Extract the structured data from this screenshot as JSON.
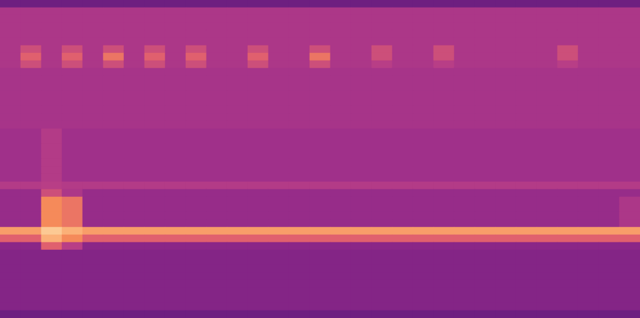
{
  "chart_data": {
    "type": "heatmap",
    "tick_labels": false,
    "zlim": [
      0,
      10
    ],
    "cells": [
      [
        3,
        3,
        3,
        3,
        3,
        3,
        3,
        3,
        3,
        3,
        3,
        3,
        3,
        3,
        3,
        3,
        3,
        3,
        3,
        3,
        3,
        3,
        3,
        3,
        3,
        3,
        3,
        3,
        3,
        3,
        3
      ],
      [
        5.5,
        5.5,
        5.5,
        5.5,
        5.5,
        5.5,
        5.5,
        5.5,
        5.5,
        5.5,
        5.5,
        5.5,
        5.5,
        5.5,
        5.5,
        5.5,
        5.5,
        5.5,
        5.5,
        5.5,
        5.5,
        5.5,
        5.5,
        5.5,
        5.5,
        5.5,
        5.5,
        5.5,
        5.5,
        5.5,
        5.5
      ],
      [
        5.5,
        5.5,
        5.5,
        5.5,
        5.5,
        5.5,
        5.5,
        5.5,
        5.5,
        5.5,
        5.5,
        5.5,
        5.5,
        5.5,
        5.5,
        5.5,
        5.5,
        5.5,
        5.5,
        5.5,
        5.5,
        5.5,
        5.5,
        5.5,
        5.5,
        5.5,
        5.5,
        5.5,
        5.5,
        5.5,
        5.5
      ],
      [
        5.5,
        5.5,
        5.5,
        5.5,
        5.5,
        5.5,
        5.5,
        5.5,
        5.5,
        5.5,
        5.5,
        5.5,
        5.5,
        5.5,
        5.5,
        5.5,
        5.5,
        5.5,
        5.5,
        5.5,
        5.5,
        5.5,
        5.5,
        5.5,
        5.5,
        5.5,
        5.5,
        5.5,
        5.5,
        5.5,
        5.5
      ],
      [
        5.5,
        5.5,
        5.5,
        5.5,
        5.5,
        5.5,
        5.5,
        5.5,
        5.5,
        5.5,
        5.5,
        5.5,
        5.5,
        5.5,
        5.5,
        5.5,
        5.5,
        5.5,
        5.5,
        5.5,
        5.5,
        5.5,
        5.5,
        5.5,
        5.5,
        5.5,
        5.5,
        5.5,
        5.5,
        5.5,
        5.5
      ],
      [
        5.5,
        5.5,
        5.5,
        5.5,
        5.5,
        5.5,
        5.5,
        5.5,
        5.5,
        5.5,
        5.5,
        5.5,
        5.5,
        5.5,
        5.5,
        5.5,
        5.5,
        5.5,
        5.5,
        5.5,
        5.5,
        5.5,
        5.5,
        5.5,
        5.5,
        5.5,
        5.5,
        5.5,
        5.5,
        5.5,
        5.5
      ],
      [
        5.5,
        6.5,
        5.5,
        6.5,
        5.5,
        6.5,
        5.5,
        6.5,
        5.5,
        6.5,
        5.5,
        5.5,
        6.5,
        5.5,
        5.5,
        6.5,
        5.5,
        5.5,
        6.5,
        5.5,
        5.5,
        6.5,
        5.5,
        5.5,
        5.5,
        5.5,
        5.5,
        6.5,
        5.5,
        5.5,
        5.5
      ],
      [
        5.5,
        7,
        5.5,
        7,
        5.5,
        7.5,
        5.5,
        7,
        5.5,
        7,
        5.5,
        5.5,
        7,
        5.5,
        5.5,
        7.5,
        5.5,
        5.5,
        6.5,
        5.5,
        5.5,
        6.5,
        5.5,
        5.5,
        5.5,
        5.5,
        5.5,
        6.5,
        5.5,
        5.5,
        5.5
      ],
      [
        5.5,
        6.5,
        5.5,
        6.5,
        5.5,
        6.5,
        5.5,
        6.5,
        5.5,
        6.5,
        5.5,
        5.5,
        6.5,
        5.5,
        5.5,
        6.5,
        5.5,
        5.5,
        6,
        5.5,
        5.5,
        6,
        5.5,
        5.5,
        5.5,
        5.5,
        5.5,
        6,
        5.5,
        5.5,
        5.5
      ],
      [
        5.3,
        5.3,
        5.3,
        5.3,
        5.3,
        5.3,
        5.3,
        5.3,
        5.3,
        5.3,
        5.3,
        5.3,
        5.3,
        5.3,
        5.3,
        5.3,
        5.3,
        5.3,
        5.3,
        5.3,
        5.3,
        5.3,
        5.3,
        5.3,
        5.3,
        5.3,
        5.3,
        5.3,
        5.3,
        5.3,
        5.3
      ],
      [
        5.3,
        5.3,
        5.3,
        5.3,
        5.3,
        5.3,
        5.3,
        5.3,
        5.3,
        5.3,
        5.3,
        5.3,
        5.3,
        5.3,
        5.3,
        5.3,
        5.3,
        5.3,
        5.3,
        5.3,
        5.3,
        5.3,
        5.3,
        5.3,
        5.3,
        5.3,
        5.3,
        5.3,
        5.3,
        5.3,
        5.3
      ],
      [
        5.3,
        5.3,
        5.3,
        5.3,
        5.3,
        5.3,
        5.3,
        5.3,
        5.3,
        5.3,
        5.3,
        5.3,
        5.3,
        5.3,
        5.3,
        5.3,
        5.3,
        5.3,
        5.3,
        5.3,
        5.3,
        5.3,
        5.3,
        5.3,
        5.3,
        5.3,
        5.3,
        5.3,
        5.3,
        5.3,
        5.3
      ],
      [
        5.3,
        5.3,
        5.3,
        5.3,
        5.3,
        5.3,
        5.3,
        5.3,
        5.3,
        5.3,
        5.3,
        5.3,
        5.3,
        5.3,
        5.3,
        5.3,
        5.3,
        5.3,
        5.3,
        5.3,
        5.3,
        5.3,
        5.3,
        5.3,
        5.3,
        5.3,
        5.3,
        5.3,
        5.3,
        5.3,
        5.3
      ],
      [
        5.3,
        5.3,
        5.3,
        5.3,
        5.3,
        5.3,
        5.3,
        5.3,
        5.3,
        5.3,
        5.3,
        5.3,
        5.3,
        5.3,
        5.3,
        5.3,
        5.3,
        5.3,
        5.3,
        5.3,
        5.3,
        5.3,
        5.3,
        5.3,
        5.3,
        5.3,
        5.3,
        5.3,
        5.3,
        5.3,
        5.3
      ],
      [
        5.3,
        5.3,
        5.3,
        5.3,
        5.3,
        5.3,
        5.3,
        5.3,
        5.3,
        5.3,
        5.3,
        5.3,
        5.3,
        5.3,
        5.3,
        5.3,
        5.3,
        5.3,
        5.3,
        5.3,
        5.3,
        5.3,
        5.3,
        5.3,
        5.3,
        5.3,
        5.3,
        5.3,
        5.3,
        5.3,
        5.3
      ],
      [
        5.3,
        5.3,
        5.3,
        5.3,
        5.3,
        5.3,
        5.3,
        5.3,
        5.3,
        5.3,
        5.3,
        5.3,
        5.3,
        5.3,
        5.3,
        5.3,
        5.3,
        5.3,
        5.3,
        5.3,
        5.3,
        5.3,
        5.3,
        5.3,
        5.3,
        5.3,
        5.3,
        5.3,
        5.3,
        5.3,
        5.3
      ],
      [
        5.3,
        5.3,
        5.3,
        5.3,
        5.3,
        5.3,
        5.3,
        5.3,
        5.3,
        5.3,
        5.3,
        5.3,
        5.3,
        5.3,
        5.3,
        5.3,
        5.3,
        5.3,
        5.3,
        5.3,
        5.3,
        5.3,
        5.3,
        5.3,
        5.3,
        5.3,
        5.3,
        5.3,
        5.3,
        5.3,
        5.3
      ],
      [
        5,
        5,
        5.8,
        5,
        5,
        5,
        5,
        5,
        5,
        5,
        5,
        5,
        5,
        5,
        5,
        5,
        5,
        5,
        5,
        5,
        5,
        5,
        5,
        5,
        5,
        5,
        5,
        5,
        5,
        5,
        5
      ],
      [
        5,
        5,
        5.8,
        5,
        5,
        5,
        5,
        5,
        5,
        5,
        5,
        5,
        5,
        5,
        5,
        5,
        5,
        5,
        5,
        5,
        5,
        5,
        5,
        5,
        5,
        5,
        5,
        5,
        5,
        5,
        5
      ],
      [
        5,
        5,
        5.8,
        5,
        5,
        5,
        5,
        5,
        5,
        5,
        5,
        5,
        5,
        5,
        5,
        5,
        5,
        5,
        5,
        5,
        5,
        5,
        5,
        5,
        5,
        5,
        5,
        5,
        5,
        5,
        5
      ],
      [
        5,
        5,
        5.8,
        5,
        5,
        5,
        5,
        5,
        5,
        5,
        5,
        5,
        5,
        5,
        5,
        5,
        5,
        5,
        5,
        5,
        5,
        5,
        5,
        5,
        5,
        5,
        5,
        5,
        5,
        5,
        5
      ],
      [
        5,
        5,
        5.8,
        5,
        5,
        5,
        5,
        5,
        5,
        5,
        5,
        5,
        5,
        5,
        5,
        5,
        5,
        5,
        5,
        5,
        5,
        5,
        5,
        5,
        5,
        5,
        5,
        5,
        5,
        5,
        5
      ],
      [
        5,
        5,
        5.8,
        5,
        5,
        5,
        5,
        5,
        5,
        5,
        5,
        5,
        5,
        5,
        5,
        5,
        5,
        5,
        5,
        5,
        5,
        5,
        5,
        5,
        5,
        5,
        5,
        5,
        5,
        5,
        5
      ],
      [
        5,
        5,
        5.8,
        5,
        5,
        5,
        5,
        5,
        5,
        5,
        5,
        5,
        5,
        5,
        5,
        5,
        5,
        5,
        5,
        5,
        5,
        5,
        5,
        5,
        5,
        5,
        5,
        5,
        5,
        5,
        5
      ],
      [
        5.8,
        5.8,
        6,
        5.8,
        5.8,
        5.8,
        5.8,
        5.8,
        5.8,
        5.8,
        5.8,
        5.8,
        5.8,
        5.8,
        5.8,
        5.8,
        5.8,
        5.8,
        5.8,
        5.8,
        5.8,
        5.8,
        5.8,
        5.8,
        5.8,
        5.8,
        5.8,
        5.8,
        5.8,
        5.8,
        5.8
      ],
      [
        4.6,
        4.6,
        6.5,
        5.5,
        4.6,
        4.6,
        4.6,
        4.6,
        4.6,
        4.6,
        4.6,
        4.6,
        4.6,
        4.6,
        4.6,
        4.6,
        4.6,
        4.6,
        4.6,
        4.6,
        4.6,
        4.6,
        4.6,
        4.6,
        4.6,
        4.6,
        4.6,
        4.6,
        4.6,
        4.6,
        4.6
      ],
      [
        4.6,
        4.6,
        8,
        7.5,
        4.6,
        4.6,
        4.6,
        4.6,
        4.6,
        4.6,
        4.6,
        4.6,
        4.6,
        4.6,
        4.6,
        4.6,
        4.6,
        4.6,
        4.6,
        4.6,
        4.6,
        4.6,
        4.6,
        4.6,
        4.6,
        4.6,
        4.6,
        4.6,
        4.6,
        4.6,
        5.5
      ],
      [
        4.6,
        4.6,
        8,
        7.5,
        4.6,
        4.6,
        4.6,
        4.6,
        4.6,
        4.6,
        4.6,
        4.6,
        4.6,
        4.6,
        4.6,
        4.6,
        4.6,
        4.6,
        4.6,
        4.6,
        4.6,
        4.6,
        4.6,
        4.6,
        4.6,
        4.6,
        4.6,
        4.6,
        4.6,
        4.6,
        5.5
      ],
      [
        4.6,
        4.6,
        8,
        7.5,
        4.6,
        4.6,
        4.6,
        4.6,
        4.6,
        4.6,
        4.6,
        4.6,
        4.6,
        4.6,
        4.6,
        4.6,
        4.6,
        4.6,
        4.6,
        4.6,
        4.6,
        4.6,
        4.6,
        4.6,
        4.6,
        4.6,
        4.6,
        4.6,
        4.6,
        4.6,
        5.5
      ],
      [
        4.6,
        4.6,
        8,
        7.5,
        4.6,
        4.6,
        4.6,
        4.6,
        4.6,
        4.6,
        4.6,
        4.6,
        4.6,
        4.6,
        4.6,
        4.6,
        4.6,
        4.6,
        4.6,
        4.6,
        4.6,
        4.6,
        4.6,
        4.6,
        4.6,
        4.6,
        4.6,
        4.6,
        4.6,
        4.6,
        5.5
      ],
      [
        8.5,
        8.5,
        9.5,
        9,
        8.5,
        8.5,
        8.5,
        8.5,
        8.5,
        8.5,
        8.5,
        8.5,
        8.5,
        8.5,
        8.5,
        8.5,
        8.5,
        8.5,
        8.5,
        8.5,
        8.5,
        8.5,
        8.5,
        8.5,
        8.5,
        8.5,
        8.5,
        8.5,
        8.5,
        8.5,
        8.5
      ],
      [
        7,
        7,
        9,
        8,
        7,
        7,
        7,
        7,
        7,
        7,
        7,
        7,
        7,
        7,
        7,
        7,
        7,
        7,
        7,
        7,
        7,
        7,
        7,
        7,
        7,
        7,
        7,
        7,
        7,
        7,
        7
      ],
      [
        4,
        4,
        7,
        6,
        4,
        4,
        4,
        4,
        4,
        4,
        4,
        4,
        4,
        4,
        4,
        4,
        4,
        4,
        4,
        4,
        4,
        4,
        4,
        4,
        4,
        4,
        4,
        4,
        4,
        4,
        4
      ],
      [
        3.8,
        3.8,
        3.8,
        3.8,
        3.8,
        3.8,
        3.8,
        3.8,
        3.8,
        3.8,
        3.8,
        3.8,
        3.8,
        3.8,
        3.8,
        3.8,
        3.8,
        3.8,
        3.8,
        3.8,
        3.8,
        3.8,
        3.8,
        3.8,
        3.8,
        3.8,
        3.8,
        3.8,
        3.8,
        3.8,
        3.8
      ],
      [
        3.8,
        3.8,
        3.8,
        3.8,
        3.8,
        3.8,
        3.8,
        3.8,
        3.8,
        3.8,
        3.8,
        3.8,
        3.8,
        3.8,
        3.8,
        3.8,
        3.8,
        3.8,
        3.8,
        3.8,
        3.8,
        3.8,
        3.8,
        3.8,
        3.8,
        3.8,
        3.8,
        3.8,
        3.8,
        3.8,
        3.8
      ],
      [
        3.8,
        3.8,
        3.8,
        3.8,
        3.8,
        3.8,
        3.8,
        3.8,
        3.8,
        3.8,
        3.8,
        3.8,
        3.8,
        3.8,
        3.8,
        3.8,
        3.8,
        3.8,
        3.8,
        3.8,
        3.8,
        3.8,
        3.8,
        3.8,
        3.8,
        3.8,
        3.8,
        3.8,
        3.8,
        3.8,
        3.8
      ],
      [
        3.8,
        3.8,
        3.8,
        3.8,
        3.8,
        3.8,
        3.8,
        3.8,
        3.8,
        3.8,
        3.8,
        3.8,
        3.8,
        3.8,
        3.8,
        3.8,
        3.8,
        3.8,
        3.8,
        3.8,
        3.8,
        3.8,
        3.8,
        3.8,
        3.8,
        3.8,
        3.8,
        3.8,
        3.8,
        3.8,
        3.8
      ],
      [
        3.8,
        3.8,
        3.8,
        3.8,
        3.8,
        3.8,
        3.8,
        3.8,
        3.8,
        3.8,
        3.8,
        3.8,
        3.8,
        3.8,
        3.8,
        3.8,
        3.8,
        3.8,
        3.8,
        3.8,
        3.8,
        3.8,
        3.8,
        3.8,
        3.8,
        3.8,
        3.8,
        3.8,
        3.8,
        3.8,
        3.8
      ],
      [
        3.8,
        3.8,
        3.8,
        3.8,
        3.8,
        3.8,
        3.8,
        3.8,
        3.8,
        3.8,
        3.8,
        3.8,
        3.8,
        3.8,
        3.8,
        3.8,
        3.8,
        3.8,
        3.8,
        3.8,
        3.8,
        3.8,
        3.8,
        3.8,
        3.8,
        3.8,
        3.8,
        3.8,
        3.8,
        3.8,
        3.8
      ],
      [
        3.8,
        3.8,
        3.8,
        3.8,
        3.8,
        3.8,
        3.8,
        3.8,
        3.8,
        3.8,
        3.8,
        3.8,
        3.8,
        3.8,
        3.8,
        3.8,
        3.8,
        3.8,
        3.8,
        3.8,
        3.8,
        3.8,
        3.8,
        3.8,
        3.8,
        3.8,
        3.8,
        3.8,
        3.8,
        3.8,
        3.8
      ],
      [
        3.8,
        3.8,
        3.8,
        3.8,
        3.8,
        3.8,
        3.8,
        3.8,
        3.8,
        3.8,
        3.8,
        3.8,
        3.8,
        3.8,
        3.8,
        3.8,
        3.8,
        3.8,
        3.8,
        3.8,
        3.8,
        3.8,
        3.8,
        3.8,
        3.8,
        3.8,
        3.8,
        3.8,
        3.8,
        3.8,
        3.8
      ],
      [
        3,
        3,
        3,
        3,
        3,
        3,
        3,
        3,
        3,
        3,
        3,
        3,
        3,
        3,
        3,
        3,
        3,
        3,
        3,
        3,
        3,
        3,
        3,
        3,
        3,
        3,
        3,
        3,
        3,
        3,
        3
      ]
    ]
  }
}
